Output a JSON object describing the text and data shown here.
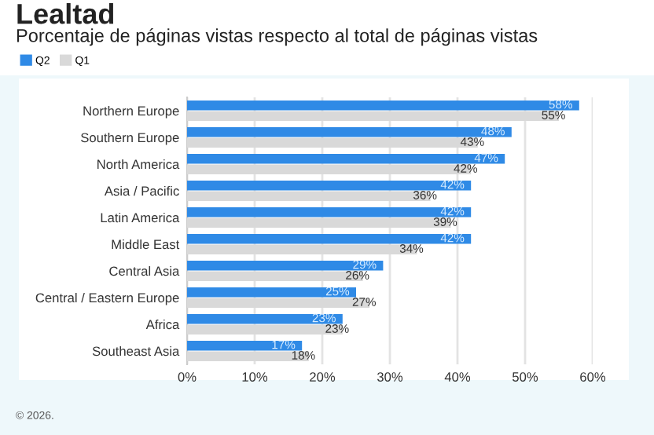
{
  "chart_data": {
    "type": "bar",
    "orientation": "horizontal",
    "title": "Lealtad",
    "subtitle": "Porcentaje de páginas vistas respecto al total de páginas vistas",
    "categories": [
      "Northern Europe",
      "Southern Europe",
      "North America",
      "Asia / Pacific",
      "Latin America",
      "Middle East",
      "Central Asia",
      "Central / Eastern Europe",
      "Africa",
      "Southeast Asia"
    ],
    "series": [
      {
        "name": "Q2",
        "color": "#2f8ae6",
        "values": [
          58,
          48,
          47,
          42,
          42,
          42,
          29,
          25,
          23,
          17
        ],
        "value_labels": [
          "58%",
          "48%",
          "47%",
          "42%",
          "42%",
          "42%",
          "29%",
          "25%",
          "23%",
          "17%"
        ]
      },
      {
        "name": "Q1",
        "color": "#d9d9d9",
        "values": [
          55,
          43,
          42,
          36,
          39,
          34,
          26,
          27,
          23,
          18
        ],
        "value_labels": [
          "55%",
          "43%",
          "42%",
          "36%",
          "39%",
          "34%",
          "26%",
          "27%",
          "23%",
          "18%"
        ]
      }
    ],
    "xlim": [
      0,
      60
    ],
    "xticks": [
      {
        "value": 0,
        "label": "0%"
      },
      {
        "value": 10,
        "label": "10%"
      },
      {
        "value": 20,
        "label": "20%"
      },
      {
        "value": 30,
        "label": "30%"
      },
      {
        "value": 40,
        "label": "40%"
      },
      {
        "value": 50,
        "label": "50%"
      },
      {
        "value": 60,
        "label": "60%"
      }
    ],
    "grid": "x",
    "legend": "top left",
    "annotations": [
      "© 2026."
    ]
  }
}
